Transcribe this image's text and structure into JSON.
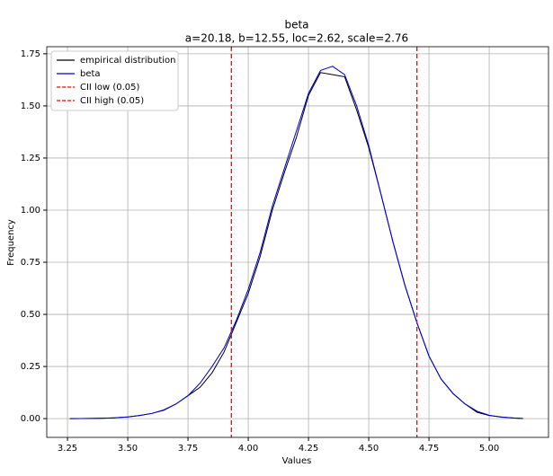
{
  "chart_data": {
    "type": "line",
    "title": "beta",
    "subtitle": "a=20.18, b=12.55, loc=2.62, scale=2.76",
    "x_label": "Values",
    "y_label": "Frequency",
    "x": [
      3.26,
      3.35,
      3.4,
      3.45,
      3.5,
      3.55,
      3.6,
      3.65,
      3.7,
      3.75,
      3.8,
      3.85,
      3.9,
      3.95,
      4.0,
      4.05,
      4.1,
      4.15,
      4.2,
      4.25,
      4.3,
      4.35,
      4.4,
      4.45,
      4.5,
      4.55,
      4.6,
      4.65,
      4.7,
      4.75,
      4.8,
      4.85,
      4.9,
      4.95,
      5.0,
      5.05,
      5.1,
      5.14
    ],
    "series": [
      {
        "name": "empirical distribution",
        "color": "#000000",
        "values": [
          0.0,
          0.001,
          0.002,
          0.004,
          0.008,
          0.015,
          0.025,
          0.04,
          0.07,
          0.11,
          0.15,
          0.22,
          0.32,
          0.46,
          0.6,
          0.78,
          1.0,
          1.18,
          1.35,
          1.55,
          1.66,
          1.65,
          1.64,
          1.48,
          1.3,
          1.08,
          0.85,
          0.64,
          0.46,
          0.3,
          0.19,
          0.12,
          0.07,
          0.03,
          0.015,
          0.008,
          0.003,
          0.0
        ]
      },
      {
        "name": "beta",
        "color": "#0000cc",
        "values": [
          0.0,
          0.001,
          0.002,
          0.004,
          0.008,
          0.015,
          0.025,
          0.042,
          0.07,
          0.11,
          0.17,
          0.25,
          0.34,
          0.47,
          0.62,
          0.8,
          1.02,
          1.2,
          1.38,
          1.56,
          1.67,
          1.69,
          1.65,
          1.5,
          1.31,
          1.08,
          0.85,
          0.64,
          0.46,
          0.3,
          0.19,
          0.12,
          0.07,
          0.035,
          0.016,
          0.007,
          0.003,
          0.001
        ]
      }
    ],
    "vlines": [
      {
        "name": "CII low (0.05)",
        "value": 3.93,
        "color": "#ff0000"
      },
      {
        "name": "CII high (0.05)",
        "value": 4.7,
        "color": "#ff0000"
      }
    ],
    "xlim": [
      3.164,
      5.246
    ],
    "ylim": [
      -0.09,
      1.784
    ],
    "xticks": [
      {
        "value": 3.25,
        "label": "3.25"
      },
      {
        "value": 3.5,
        "label": "3.50"
      },
      {
        "value": 3.75,
        "label": "3.75"
      },
      {
        "value": 4.0,
        "label": "4.00"
      },
      {
        "value": 4.25,
        "label": "4.25"
      },
      {
        "value": 4.5,
        "label": "4.50"
      },
      {
        "value": 4.75,
        "label": "4.75"
      },
      {
        "value": 5.0,
        "label": "5.00"
      }
    ],
    "yticks": [
      {
        "value": 0,
        "label": "0.00"
      },
      {
        "value": 0.25,
        "label": "0.25"
      },
      {
        "value": 0.5,
        "label": "0.50"
      },
      {
        "value": 0.75,
        "label": "0.75"
      },
      {
        "value": 1.0,
        "label": "1.00"
      },
      {
        "value": 1.25,
        "label": "1.25"
      },
      {
        "value": 1.5,
        "label": "1.50"
      },
      {
        "value": 1.75,
        "label": "1.75"
      }
    ],
    "grid": true,
    "legend": "upper-left"
  }
}
